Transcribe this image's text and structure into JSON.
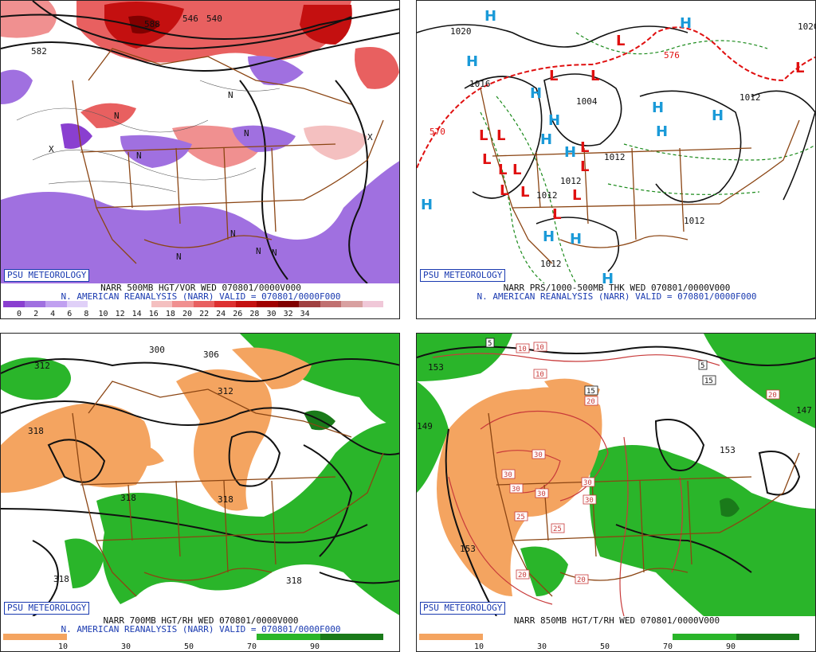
{
  "panels": [
    {
      "badge": "PSU METEOROLOGY",
      "line1": "NARR 500MB HGT/VOR WED 070801/0000V000",
      "line2": "N. AMERICAN REANALYSIS (NARR) VALID = 070801/0000F000",
      "colorbar_colors": [
        "#8a3fd0",
        "#a070e0",
        "#c0a0f0",
        "#e0d0f8",
        "#ffffff",
        "#ffffff",
        "#ffffff",
        "#f4c0c0",
        "#f09090",
        "#e86060",
        "#dd3030",
        "#c41010",
        "#a00000",
        "#800000",
        "#a04040",
        "#c07070",
        "#d8a0a0",
        "#f0c8d8"
      ],
      "colorbar_ticks": [
        "0",
        "2",
        "4",
        "6",
        "8",
        "10",
        "12",
        "14",
        "16",
        "18",
        "20",
        "22",
        "24",
        "26",
        "28",
        "30",
        "32",
        "34"
      ],
      "contour_labels": [
        "582",
        "588",
        "546",
        "540"
      ],
      "cell_labels": [
        "X",
        "N",
        "N",
        "N",
        "N",
        "N",
        "N",
        "N",
        "N",
        "X"
      ]
    },
    {
      "badge": "PSU METEOROLOGY",
      "line1": "NARR PRS/1000-500MB THK WED 070801/0000V000",
      "line2": "N. AMERICAN REANALYSIS (NARR) VALID = 070801/0000F000",
      "isobar_labels": [
        "1020",
        "1020",
        "1016",
        "1004",
        "1012",
        "1012",
        "1012",
        "1012",
        "1012",
        "1012"
      ],
      "thickness_labels": [
        "570",
        "576"
      ],
      "high_symbol": "H",
      "low_symbol": "L"
    },
    {
      "badge": "PSU METEOROLOGY",
      "line1": "NARR 700MB HGT/RH WED 070801/0000V000",
      "line2": "N. AMERICAN REANALYSIS (NARR) VALID = 070801/0000F000",
      "colorbar_colors": [
        "#f4a460",
        "#ffffff",
        "#ffffff",
        "#ffffff",
        "#2ab52a",
        "#1a7a1a"
      ],
      "colorbar_ticks": [
        "10",
        "30",
        "50",
        "70",
        "90"
      ],
      "contour_labels": [
        "312",
        "306",
        "300",
        "312",
        "318",
        "318",
        "318",
        "318",
        "318"
      ]
    },
    {
      "badge": "PSU METEOROLOGY",
      "line1": "NARR 850MB HGT/T/RH WED 070801/0000V000",
      "line2": "",
      "colorbar_colors": [
        "#f4a460",
        "#ffffff",
        "#ffffff",
        "#ffffff",
        "#2ab52a",
        "#1a7a1a"
      ],
      "colorbar_ticks": [
        "10",
        "30",
        "50",
        "70",
        "90"
      ],
      "height_labels": [
        "153",
        "153",
        "153",
        "147",
        "149"
      ],
      "temp_box_labels": [
        "5",
        "10",
        "10",
        "10",
        "5",
        "15",
        "20",
        "15",
        "30",
        "30",
        "30",
        "30",
        "30",
        "30",
        "25",
        "25",
        "20",
        "20",
        "20"
      ]
    }
  ],
  "colors": {
    "border": "#8b4513",
    "contour": "#111111",
    "thickness_red": "#e01010",
    "thickness_green": "#1a8a1a",
    "high": "#1a9ad8",
    "low": "#e01010",
    "badge_blue": "#1a3ab0",
    "rh_dry": "#f4a460",
    "rh_moist": "#2ab52a"
  }
}
